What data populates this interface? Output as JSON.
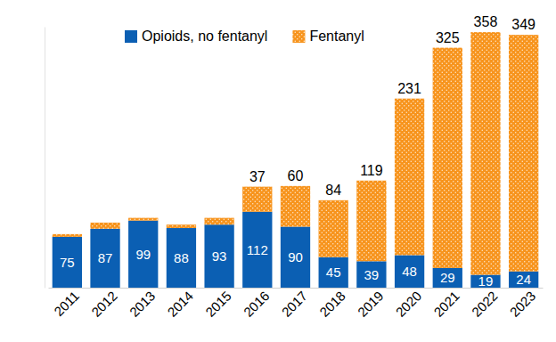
{
  "chart_data": {
    "type": "bar",
    "stacked": true,
    "data_labels": true,
    "legend": "top",
    "tick_labels": "x",
    "grid": false,
    "categories": [
      "2011",
      "2012",
      "2013",
      "2014",
      "2015",
      "2016",
      "2017",
      "2018",
      "2019",
      "2020",
      "2021",
      "2022",
      "2023"
    ],
    "series": [
      {
        "name": "Opioids, no fentanyl",
        "color": "#0b5fb3",
        "values": [
          75,
          87,
          99,
          88,
          93,
          112,
          90,
          45,
          39,
          48,
          29,
          19,
          24
        ]
      },
      {
        "name": "Fentanyl",
        "color": "#f7941d",
        "values": [
          4,
          9,
          4,
          5,
          10,
          37,
          60,
          84,
          119,
          231,
          325,
          358,
          349
        ],
        "value_labels": [
          null,
          null,
          null,
          null,
          null,
          "37",
          "60",
          "84",
          "119",
          "231",
          "325",
          "358",
          "349"
        ]
      }
    ],
    "ylim": [
      0,
      385
    ]
  }
}
